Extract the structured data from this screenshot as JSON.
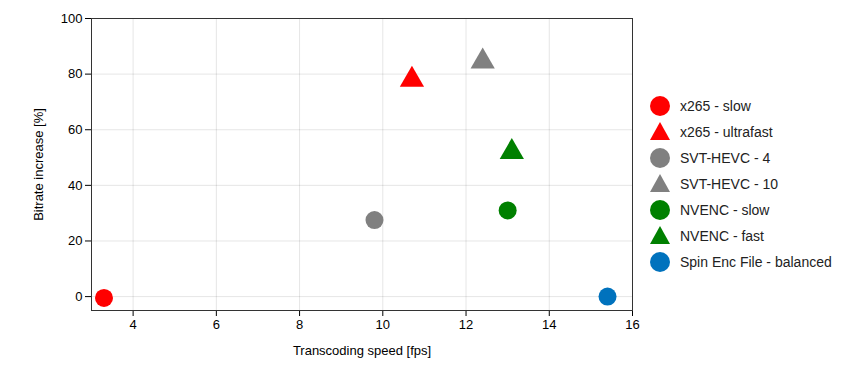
{
  "chart_data": {
    "type": "scatter",
    "x_label": "Transcoding speed [fps]",
    "y_label": "Bitrate increase [%]",
    "xlim": [
      3,
      16
    ],
    "xticks": [
      4,
      6,
      8,
      10,
      12,
      14,
      16
    ],
    "ylim": [
      -5,
      100
    ],
    "yticks": [
      0,
      20,
      40,
      60,
      80,
      100
    ],
    "grid": true,
    "legend": "right",
    "series": [
      {
        "name": "x265 - slow",
        "color": "#ff0000",
        "marker": "circle",
        "x": [
          3.3
        ],
        "values": [
          -0.5
        ]
      },
      {
        "name": "x265 - ultrafast",
        "color": "#ff0000",
        "marker": "triangle",
        "x": [
          10.7
        ],
        "values": [
          78
        ]
      },
      {
        "name": "SVT-HEVC - 4",
        "color": "#808080",
        "marker": "circle",
        "x": [
          9.8
        ],
        "values": [
          27.5
        ]
      },
      {
        "name": "SVT-HEVC - 10",
        "color": "#808080",
        "marker": "triangle",
        "x": [
          12.4
        ],
        "values": [
          84.5
        ]
      },
      {
        "name": "NVENC - slow",
        "color": "#008000",
        "marker": "circle",
        "x": [
          13.0
        ],
        "values": [
          31
        ]
      },
      {
        "name": "NVENC - fast",
        "color": "#008000",
        "marker": "triangle",
        "x": [
          13.1
        ],
        "values": [
          52
        ]
      },
      {
        "name": "Spin Enc File - balanced",
        "color": "#0072bd",
        "marker": "circle",
        "x": [
          15.4
        ],
        "values": [
          0
        ]
      }
    ]
  }
}
